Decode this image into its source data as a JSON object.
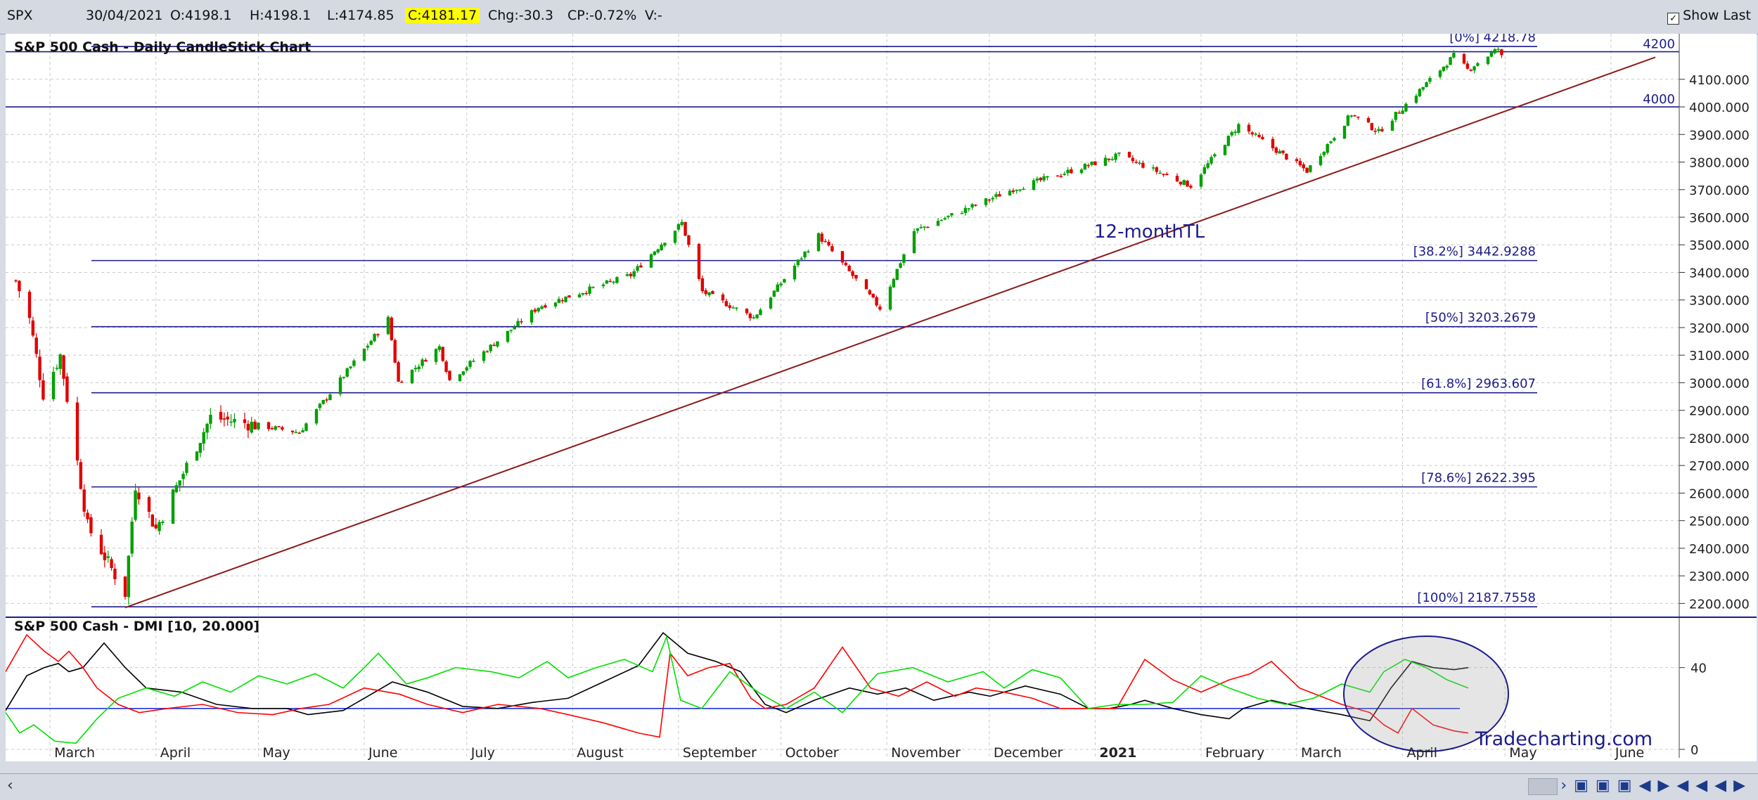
{
  "toolbar": {
    "symbol": "SPX",
    "date": "30/04/2021",
    "open": "O:4198.1",
    "high": "H:4198.1",
    "low": "L:4174.85",
    "close": "C:4181.17",
    "change": "Chg:-30.3",
    "change_pct": "CP:-0.72%",
    "volume": "V:-",
    "show_last_label": "Show Last",
    "show_last_checked": true
  },
  "chart_data": [
    {
      "type": "candlestick",
      "title": "S&P 500 Cash - Daily CandleStick Chart",
      "ylim": [
        2150,
        4260
      ],
      "yticks": [
        "4100.000",
        "4000.000",
        "3900.000",
        "3800.000",
        "3700.000",
        "3600.000",
        "3500.000",
        "3400.000",
        "3300.000",
        "3200.000",
        "3100.000",
        "3000.000",
        "2900.000",
        "2800.000",
        "2700.000",
        "2600.000",
        "2500.000",
        "2400.000",
        "2300.000",
        "2200.000"
      ],
      "ytick_values": [
        4100,
        4000,
        3900,
        3800,
        3700,
        3600,
        3500,
        3400,
        3300,
        3200,
        3100,
        3000,
        2900,
        2800,
        2700,
        2600,
        2500,
        2400,
        2300,
        2200
      ],
      "xlabels": [
        "March",
        "April",
        "May",
        "June",
        "July",
        "August",
        "September",
        "October",
        "November",
        "December",
        "2021",
        "February",
        "March",
        "April",
        "May",
        "June"
      ],
      "key_points": [
        {
          "date": "2020-02-20",
          "value": 3370
        },
        {
          "date": "2020-02-24",
          "value": 3230
        },
        {
          "date": "2020-02-28",
          "value": 2960
        },
        {
          "date": "2020-03-04",
          "value": 3100
        },
        {
          "date": "2020-03-12",
          "value": 2480
        },
        {
          "date": "2020-03-23",
          "value": 2237
        },
        {
          "date": "2020-03-26",
          "value": 2630
        },
        {
          "date": "2020-04-01",
          "value": 2470
        },
        {
          "date": "2020-04-17",
          "value": 2875
        },
        {
          "date": "2020-05-13",
          "value": 2820
        },
        {
          "date": "2020-06-08",
          "value": 3232
        },
        {
          "date": "2020-06-11",
          "value": 3002
        },
        {
          "date": "2020-06-23",
          "value": 3130
        },
        {
          "date": "2020-06-26",
          "value": 3009
        },
        {
          "date": "2020-07-22",
          "value": 3275
        },
        {
          "date": "2020-08-18",
          "value": 3390
        },
        {
          "date": "2020-09-02",
          "value": 3580
        },
        {
          "date": "2020-09-08",
          "value": 3330
        },
        {
          "date": "2020-09-23",
          "value": 3236
        },
        {
          "date": "2020-10-12",
          "value": 3534
        },
        {
          "date": "2020-10-30",
          "value": 3270
        },
        {
          "date": "2020-11-09",
          "value": 3550
        },
        {
          "date": "2020-12-08",
          "value": 3702
        },
        {
          "date": "2021-01-08",
          "value": 3824
        },
        {
          "date": "2021-01-29",
          "value": 3714
        },
        {
          "date": "2021-02-12",
          "value": 3934
        },
        {
          "date": "2021-03-04",
          "value": 3768
        },
        {
          "date": "2021-03-17",
          "value": 3974
        },
        {
          "date": "2021-03-25",
          "value": 3909
        },
        {
          "date": "2021-04-16",
          "value": 4185
        },
        {
          "date": "2021-04-20",
          "value": 4135
        },
        {
          "date": "2021-04-29",
          "value": 4211
        },
        {
          "date": "2021-04-30",
          "value": 4181
        }
      ],
      "fib_levels": [
        {
          "label": "[0%] 4218.78",
          "value": 4218.78
        },
        {
          "label": "[38.2%] 3442.9288",
          "value": 3442.9288
        },
        {
          "label": "[50%] 3203.2679",
          "value": 3203.2679
        },
        {
          "label": "[61.8%] 2963.607",
          "value": 2963.607
        },
        {
          "label": "[78.6%] 2622.395",
          "value": 2622.395
        },
        {
          "label": "[100%] 2187.7558",
          "value": 2187.7558
        }
      ],
      "horizontal_lines": [
        {
          "label": "4200",
          "value": 4200
        },
        {
          "label": "4000",
          "value": 4000
        }
      ],
      "trendline": {
        "label": "12-monthTL",
        "start": {
          "date": "2020-03-23",
          "value": 2185
        },
        "end": {
          "date": "2021-06-14",
          "value": 4180
        }
      }
    },
    {
      "type": "line",
      "title": "S&P 500 Cash - DMI [10, 20.000]",
      "ylim": [
        0,
        55
      ],
      "yticks": [
        "40",
        "0"
      ],
      "ytick_values": [
        40,
        0
      ],
      "reference_line": 20,
      "series": [
        {
          "color": "#000000",
          "points": [
            [
              0,
              19
            ],
            [
              30,
              36
            ],
            [
              55,
              40
            ],
            [
              75,
              42
            ],
            [
              90,
              38
            ],
            [
              110,
              40
            ],
            [
              140,
              52
            ],
            [
              170,
              40
            ],
            [
              200,
              30
            ],
            [
              250,
              28
            ],
            [
              300,
              22
            ],
            [
              350,
              20
            ],
            [
              400,
              20
            ],
            [
              430,
              17
            ],
            [
              480,
              19
            ],
            [
              510,
              25
            ],
            [
              550,
              33
            ],
            [
              600,
              28
            ],
            [
              650,
              21
            ],
            [
              700,
              20
            ],
            [
              750,
              23
            ],
            [
              800,
              25
            ],
            [
              850,
              33
            ],
            [
              900,
              41
            ],
            [
              935,
              57
            ],
            [
              970,
              47
            ],
            [
              1010,
              43
            ],
            [
              1045,
              38
            ],
            [
              1080,
              22
            ],
            [
              1110,
              18
            ],
            [
              1150,
              24
            ],
            [
              1200,
              30
            ],
            [
              1240,
              27
            ],
            [
              1280,
              30
            ],
            [
              1320,
              24
            ],
            [
              1370,
              28
            ],
            [
              1400,
              26
            ],
            [
              1450,
              31
            ],
            [
              1500,
              27
            ],
            [
              1540,
              20
            ],
            [
              1570,
              20
            ],
            [
              1600,
              22
            ],
            [
              1620,
              24
            ],
            [
              1660,
              20
            ],
            [
              1700,
              17
            ],
            [
              1740,
              15
            ],
            [
              1760,
              20
            ],
            [
              1800,
              24
            ],
            [
              1850,
              20
            ],
            [
              1900,
              17
            ],
            [
              1940,
              14
            ],
            [
              1970,
              30
            ],
            [
              2000,
              43
            ],
            [
              2030,
              40
            ],
            [
              2060,
              39
            ],
            [
              2080,
              40
            ]
          ]
        },
        {
          "color": "#ff0000",
          "points": [
            [
              0,
              38
            ],
            [
              30,
              56
            ],
            [
              55,
              48
            ],
            [
              75,
              43
            ],
            [
              90,
              48
            ],
            [
              110,
              40
            ],
            [
              130,
              30
            ],
            [
              160,
              22
            ],
            [
              190,
              18
            ],
            [
              230,
              20
            ],
            [
              280,
              22
            ],
            [
              330,
              18
            ],
            [
              380,
              17
            ],
            [
              420,
              20
            ],
            [
              460,
              22
            ],
            [
              510,
              30
            ],
            [
              560,
              27
            ],
            [
              600,
              22
            ],
            [
              650,
              18
            ],
            [
              700,
              22
            ],
            [
              760,
              20
            ],
            [
              800,
              17
            ],
            [
              850,
              13
            ],
            [
              900,
              8
            ],
            [
              930,
              6
            ],
            [
              945,
              47
            ],
            [
              970,
              36
            ],
            [
              1000,
              40
            ],
            [
              1030,
              42
            ],
            [
              1060,
              25
            ],
            [
              1080,
              20
            ],
            [
              1110,
              22
            ],
            [
              1150,
              30
            ],
            [
              1190,
              50
            ],
            [
              1230,
              30
            ],
            [
              1270,
              26
            ],
            [
              1310,
              33
            ],
            [
              1350,
              26
            ],
            [
              1380,
              30
            ],
            [
              1420,
              28
            ],
            [
              1460,
              25
            ],
            [
              1500,
              20
            ],
            [
              1540,
              20
            ],
            [
              1580,
              20
            ],
            [
              1620,
              44
            ],
            [
              1660,
              34
            ],
            [
              1700,
              28
            ],
            [
              1740,
              34
            ],
            [
              1770,
              37
            ],
            [
              1800,
              43
            ],
            [
              1840,
              30
            ],
            [
              1870,
              26
            ],
            [
              1900,
              22
            ],
            [
              1940,
              18
            ],
            [
              1960,
              12
            ],
            [
              1980,
              8
            ],
            [
              2000,
              20
            ],
            [
              2030,
              12
            ],
            [
              2060,
              9
            ],
            [
              2080,
              8
            ]
          ]
        },
        {
          "color": "#00e000",
          "points": [
            [
              0,
              18
            ],
            [
              20,
              8
            ],
            [
              40,
              12
            ],
            [
              70,
              4
            ],
            [
              100,
              3
            ],
            [
              130,
              15
            ],
            [
              160,
              25
            ],
            [
              200,
              30
            ],
            [
              240,
              26
            ],
            [
              280,
              33
            ],
            [
              320,
              28
            ],
            [
              360,
              36
            ],
            [
              400,
              32
            ],
            [
              440,
              37
            ],
            [
              480,
              30
            ],
            [
              510,
              40
            ],
            [
              530,
              47
            ],
            [
              570,
              32
            ],
            [
              600,
              35
            ],
            [
              640,
              40
            ],
            [
              690,
              38
            ],
            [
              730,
              35
            ],
            [
              770,
              43
            ],
            [
              800,
              35
            ],
            [
              840,
              40
            ],
            [
              880,
              44
            ],
            [
              920,
              38
            ],
            [
              940,
              55
            ],
            [
              960,
              24
            ],
            [
              990,
              20
            ],
            [
              1030,
              38
            ],
            [
              1070,
              28
            ],
            [
              1110,
              20
            ],
            [
              1150,
              28
            ],
            [
              1190,
              18
            ],
            [
              1240,
              37
            ],
            [
              1290,
              40
            ],
            [
              1340,
              33
            ],
            [
              1390,
              38
            ],
            [
              1420,
              30
            ],
            [
              1460,
              39
            ],
            [
              1500,
              35
            ],
            [
              1540,
              20
            ],
            [
              1580,
              22
            ],
            [
              1620,
              22
            ],
            [
              1660,
              23
            ],
            [
              1700,
              36
            ],
            [
              1740,
              30
            ],
            [
              1780,
              25
            ],
            [
              1820,
              22
            ],
            [
              1860,
              25
            ],
            [
              1900,
              32
            ],
            [
              1940,
              28
            ],
            [
              1960,
              38
            ],
            [
              1990,
              44
            ],
            [
              2020,
              40
            ],
            [
              2050,
              34
            ],
            [
              2080,
              30
            ]
          ]
        }
      ],
      "annotation": "circle-highlight"
    }
  ],
  "watermark": "Tradecharting.com",
  "colors": {
    "up": "#00a000",
    "down": "#e00000",
    "fib": "#1b1b8c",
    "trend": "#8b1a1a",
    "grid": "#c9c9c9",
    "bg": "#ffffff"
  }
}
